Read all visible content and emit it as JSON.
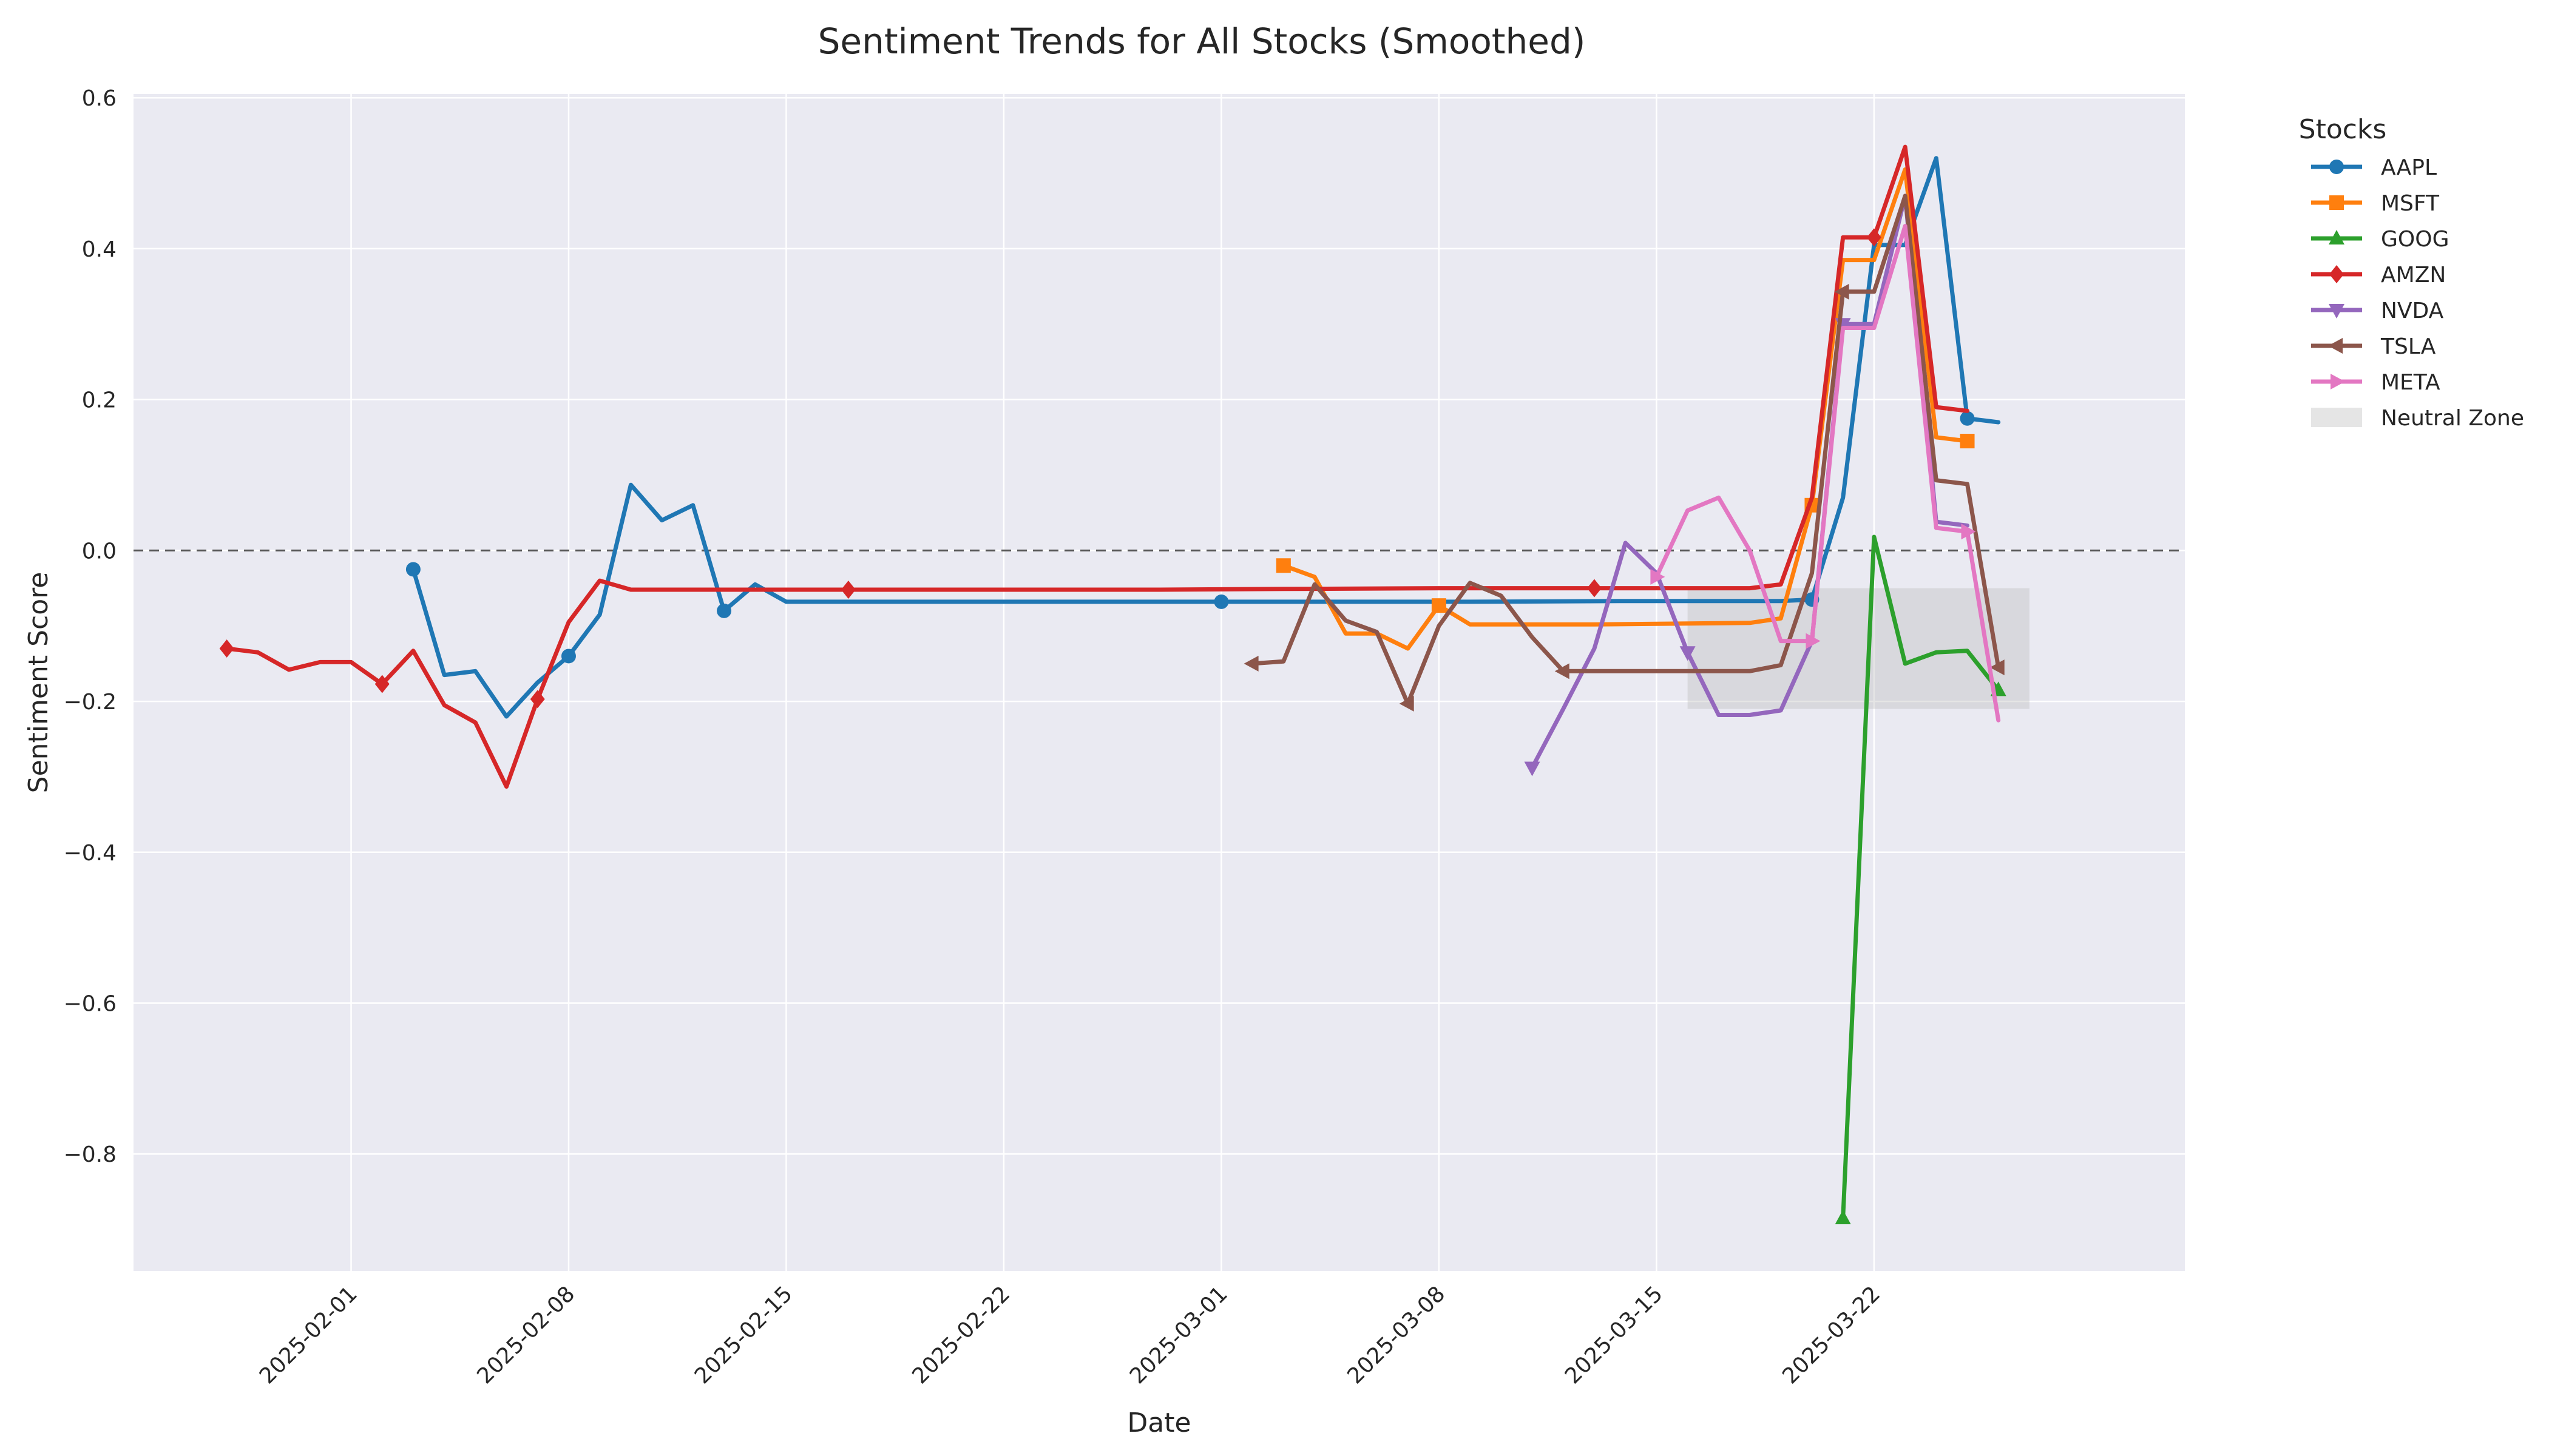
{
  "chart_data": {
    "type": "line",
    "title": "Sentiment Trends for All Stocks (Smoothed)",
    "xlabel": "Date",
    "ylabel": "Sentiment Score",
    "x_range": [
      "2025-01-25",
      "2025-04-01"
    ],
    "ylim": [
      -0.955,
      0.605
    ],
    "x_tick_labels": [
      "2025-02-01",
      "2025-02-08",
      "2025-02-15",
      "2025-02-22",
      "2025-03-01",
      "2025-03-08",
      "2025-03-15",
      "2025-03-22"
    ],
    "y_ticks": [
      0.6,
      0.4,
      0.2,
      0.0,
      -0.2,
      -0.4,
      -0.6,
      -0.8
    ],
    "y_tick_labels": [
      "0.6",
      "0.4",
      "0.2",
      "0.0",
      "−0.2",
      "−0.4",
      "−0.6",
      "−0.8"
    ],
    "grid": true,
    "reference_line": {
      "y": 0.0,
      "style": "dashed"
    },
    "neutral_zone": {
      "label": "Neutral Zone",
      "x_start": "2025-03-16",
      "x_end": "2025-03-27",
      "y_min": -0.21,
      "y_max": -0.05
    },
    "legend": {
      "title": "Stocks",
      "placement": "outside-right"
    },
    "series": [
      {
        "name": "AAPL",
        "color": "#1f77b4",
        "marker": "circle",
        "points": [
          [
            "2025-02-03",
            -0.025
          ],
          [
            "2025-02-04",
            -0.165
          ],
          [
            "2025-02-05",
            -0.16
          ],
          [
            "2025-02-06",
            -0.22
          ],
          [
            "2025-02-07",
            -0.175
          ],
          [
            "2025-02-08",
            -0.14
          ],
          [
            "2025-02-09",
            -0.085
          ],
          [
            "2025-02-10",
            0.087
          ],
          [
            "2025-02-11",
            0.04
          ],
          [
            "2025-02-12",
            0.06
          ],
          [
            "2025-02-13",
            -0.08
          ],
          [
            "2025-02-14",
            -0.045
          ],
          [
            "2025-02-15",
            -0.068
          ],
          [
            "2025-02-19",
            -0.068
          ],
          [
            "2025-02-24",
            -0.068
          ],
          [
            "2025-03-01",
            -0.068
          ],
          [
            "2025-03-04",
            -0.068
          ],
          [
            "2025-03-09",
            -0.068
          ],
          [
            "2025-03-14",
            -0.067
          ],
          [
            "2025-03-19",
            -0.067
          ],
          [
            "2025-03-20",
            -0.065
          ],
          [
            "2025-03-21",
            0.07
          ],
          [
            "2025-03-22",
            0.405
          ],
          [
            "2025-03-23",
            0.405
          ],
          [
            "2025-03-24",
            0.52
          ],
          [
            "2025-03-25",
            0.175
          ],
          [
            "2025-03-26",
            0.17
          ]
        ]
      },
      {
        "name": "MSFT",
        "color": "#ff7f0e",
        "marker": "square",
        "points": [
          [
            "2025-03-03",
            -0.02
          ],
          [
            "2025-03-04",
            -0.035
          ],
          [
            "2025-03-05",
            -0.11
          ],
          [
            "2025-03-06",
            -0.11
          ],
          [
            "2025-03-07",
            -0.13
          ],
          [
            "2025-03-08",
            -0.073
          ],
          [
            "2025-03-09",
            -0.098
          ],
          [
            "2025-03-13",
            -0.098
          ],
          [
            "2025-03-18",
            -0.096
          ],
          [
            "2025-03-19",
            -0.09
          ],
          [
            "2025-03-20",
            0.06
          ],
          [
            "2025-03-21",
            0.385
          ],
          [
            "2025-03-22",
            0.385
          ],
          [
            "2025-03-23",
            0.505
          ],
          [
            "2025-03-24",
            0.15
          ],
          [
            "2025-03-25",
            0.145
          ]
        ]
      },
      {
        "name": "GOOG",
        "color": "#2ca02c",
        "marker": "triangle-up",
        "points": [
          [
            "2025-03-21",
            -0.885
          ],
          [
            "2025-03-22",
            0.018
          ],
          [
            "2025-03-23",
            -0.15
          ],
          [
            "2025-03-24",
            -0.135
          ],
          [
            "2025-03-25",
            -0.133
          ],
          [
            "2025-03-26",
            -0.185
          ]
        ]
      },
      {
        "name": "AMZN",
        "color": "#d62728",
        "marker": "diamond",
        "points": [
          [
            "2025-01-28",
            -0.13
          ],
          [
            "2025-01-29",
            -0.135
          ],
          [
            "2025-01-30",
            -0.158
          ],
          [
            "2025-01-31",
            -0.148
          ],
          [
            "2025-02-01",
            -0.148
          ],
          [
            "2025-02-02",
            -0.177
          ],
          [
            "2025-02-03",
            -0.133
          ],
          [
            "2025-02-04",
            -0.205
          ],
          [
            "2025-02-05",
            -0.228
          ],
          [
            "2025-02-06",
            -0.313
          ],
          [
            "2025-02-07",
            -0.197
          ],
          [
            "2025-02-08",
            -0.095
          ],
          [
            "2025-02-09",
            -0.04
          ],
          [
            "2025-02-10",
            -0.052
          ],
          [
            "2025-02-12",
            -0.052
          ],
          [
            "2025-02-17",
            -0.052
          ],
          [
            "2025-02-22",
            -0.052
          ],
          [
            "2025-02-27",
            -0.052
          ],
          [
            "2025-03-03",
            -0.051
          ],
          [
            "2025-03-08",
            -0.05
          ],
          [
            "2025-03-13",
            -0.05
          ],
          [
            "2025-03-18",
            -0.05
          ],
          [
            "2025-03-19",
            -0.045
          ],
          [
            "2025-03-20",
            0.07
          ],
          [
            "2025-03-21",
            0.415
          ],
          [
            "2025-03-22",
            0.415
          ],
          [
            "2025-03-23",
            0.535
          ],
          [
            "2025-03-24",
            0.19
          ],
          [
            "2025-03-25",
            0.185
          ]
        ]
      },
      {
        "name": "NVDA",
        "color": "#9467bd",
        "marker": "triangle-down",
        "points": [
          [
            "2025-03-11",
            -0.288
          ],
          [
            "2025-03-12",
            -0.21
          ],
          [
            "2025-03-13",
            -0.13
          ],
          [
            "2025-03-14",
            0.01
          ],
          [
            "2025-03-15",
            -0.03
          ],
          [
            "2025-03-16",
            -0.135
          ],
          [
            "2025-03-17",
            -0.218
          ],
          [
            "2025-03-18",
            -0.218
          ],
          [
            "2025-03-19",
            -0.212
          ],
          [
            "2025-03-20",
            -0.12
          ],
          [
            "2025-03-21",
            0.3
          ],
          [
            "2025-03-22",
            0.3
          ],
          [
            "2025-03-23",
            0.47
          ],
          [
            "2025-03-24",
            0.038
          ],
          [
            "2025-03-25",
            0.033
          ]
        ]
      },
      {
        "name": "TSLA",
        "color": "#8c564b",
        "marker": "triangle-left",
        "points": [
          [
            "2025-03-02",
            -0.15
          ],
          [
            "2025-03-03",
            -0.147
          ],
          [
            "2025-03-04",
            -0.045
          ],
          [
            "2025-03-05",
            -0.093
          ],
          [
            "2025-03-06",
            -0.108
          ],
          [
            "2025-03-07",
            -0.203
          ],
          [
            "2025-03-08",
            -0.1
          ],
          [
            "2025-03-09",
            -0.043
          ],
          [
            "2025-03-10",
            -0.06
          ],
          [
            "2025-03-11",
            -0.115
          ],
          [
            "2025-03-12",
            -0.16
          ],
          [
            "2025-03-17",
            -0.16
          ],
          [
            "2025-03-18",
            -0.16
          ],
          [
            "2025-03-19",
            -0.152
          ],
          [
            "2025-03-20",
            -0.03
          ],
          [
            "2025-03-21",
            0.343
          ],
          [
            "2025-03-22",
            0.343
          ],
          [
            "2025-03-23",
            0.47
          ],
          [
            "2025-03-24",
            0.093
          ],
          [
            "2025-03-25",
            0.088
          ],
          [
            "2025-03-26",
            -0.155
          ]
        ]
      },
      {
        "name": "META",
        "color": "#e377c2",
        "marker": "triangle-right",
        "points": [
          [
            "2025-03-15",
            -0.035
          ],
          [
            "2025-03-16",
            0.053
          ],
          [
            "2025-03-17",
            0.07
          ],
          [
            "2025-03-18",
            0.0
          ],
          [
            "2025-03-19",
            -0.12
          ],
          [
            "2025-03-20",
            -0.12
          ],
          [
            "2025-03-21",
            0.295
          ],
          [
            "2025-03-22",
            0.295
          ],
          [
            "2025-03-23",
            0.43
          ],
          [
            "2025-03-24",
            0.03
          ],
          [
            "2025-03-25",
            0.025
          ],
          [
            "2025-03-26",
            -0.225
          ]
        ]
      }
    ]
  }
}
